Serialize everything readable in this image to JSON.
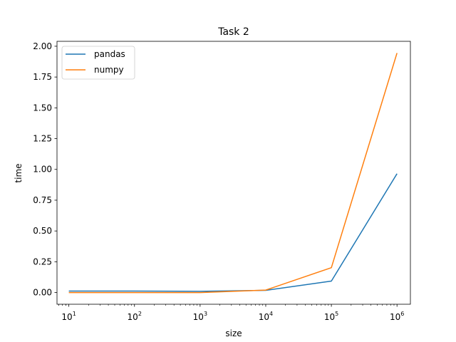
{
  "chart_data": {
    "type": "line",
    "title": "Task 2",
    "xlabel": "size",
    "ylabel": "time",
    "xscale": "log",
    "x": [
      10,
      100,
      1000,
      10000,
      100000,
      1000000
    ],
    "xticks": [
      10,
      100,
      1000,
      10000,
      100000,
      1000000
    ],
    "xtick_labels": [
      {
        "base": "10",
        "exp": "1"
      },
      {
        "base": "10",
        "exp": "2"
      },
      {
        "base": "10",
        "exp": "3"
      },
      {
        "base": "10",
        "exp": "4"
      },
      {
        "base": "10",
        "exp": "5"
      },
      {
        "base": "10",
        "exp": "6"
      }
    ],
    "yticks": [
      0.0,
      0.25,
      0.5,
      0.75,
      1.0,
      1.25,
      1.5,
      1.75,
      2.0
    ],
    "ytick_labels": [
      "0.00",
      "0.25",
      "0.50",
      "0.75",
      "1.00",
      "1.25",
      "1.50",
      "1.75",
      "2.00"
    ],
    "ylim": [
      -0.095,
      2.04
    ],
    "legend_position": "top-left",
    "series": [
      {
        "name": "pandas",
        "color": "#1f77b4",
        "values": [
          0.012,
          0.012,
          0.01,
          0.018,
          0.093,
          0.965
        ]
      },
      {
        "name": "numpy",
        "color": "#ff7f0e",
        "values": [
          0.0,
          0.0,
          0.0,
          0.02,
          0.202,
          1.945
        ]
      }
    ]
  }
}
